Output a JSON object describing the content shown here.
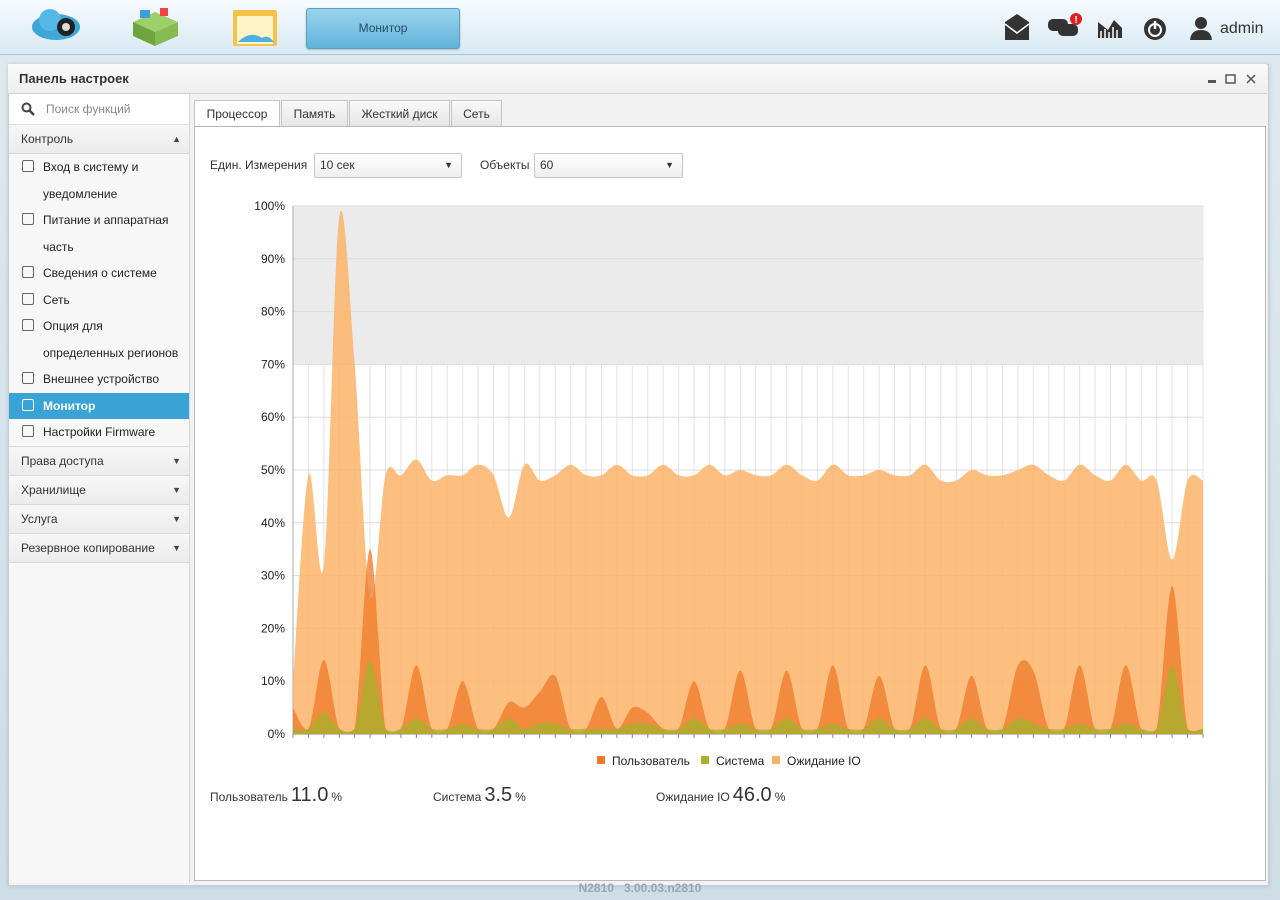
{
  "top_bar": {
    "active_tab": "Монитор",
    "notification_badge": "!",
    "user": "admin"
  },
  "window": {
    "title": "Панель настроек"
  },
  "sidebar": {
    "search_placeholder": "Поиск функций",
    "groups": [
      {
        "title": "Контроль",
        "expanded": true,
        "items": [
          {
            "label": "Вход в систему и уведомление"
          },
          {
            "label": "Питание и аппаратная часть"
          },
          {
            "label": "Сведения о системе"
          },
          {
            "label": "Сеть"
          },
          {
            "label": "Опция для определенных регионов"
          },
          {
            "label": "Внешнее устройство"
          },
          {
            "label": "Монитор",
            "active": true
          },
          {
            "label": "Настройки Firmware"
          }
        ]
      },
      {
        "title": "Права доступа"
      },
      {
        "title": "Хранилище"
      },
      {
        "title": "Услуга"
      },
      {
        "title": "Резервное копирование"
      }
    ]
  },
  "tabs": [
    {
      "label": "Процессор",
      "active": true
    },
    {
      "label": "Память"
    },
    {
      "label": "Жесткий диск"
    },
    {
      "label": "Сеть"
    }
  ],
  "controls": {
    "unit_label": "Един. Измерения",
    "unit_value": "10 сек",
    "objects_label": "Объекты",
    "objects_value": "60"
  },
  "chart_data": {
    "type": "area",
    "categories": [
      null,
      null,
      null,
      null,
      null,
      null,
      null,
      null,
      null,
      null,
      null,
      null,
      null,
      null,
      null,
      null,
      null,
      null,
      null,
      null,
      null,
      null,
      null,
      null,
      null,
      null,
      null,
      null,
      null,
      null,
      null,
      null,
      null,
      null,
      null,
      null,
      null,
      null,
      null,
      null,
      null,
      null,
      null,
      null,
      null,
      null,
      null,
      null,
      null,
      null,
      null,
      null,
      null,
      null,
      null,
      null,
      null,
      null,
      null,
      null
    ],
    "series": [
      {
        "name": "Ожидание IO",
        "color": "#fbb469",
        "values": [
          10,
          49,
          32,
          98,
          70,
          26,
          49,
          49,
          52,
          48,
          49,
          49,
          51,
          49,
          41,
          51,
          48,
          49,
          51,
          49,
          49,
          51,
          49,
          49,
          51,
          49,
          49,
          51,
          49,
          50,
          49,
          49,
          51,
          49,
          48,
          51,
          49,
          49,
          50,
          49,
          49,
          51,
          48,
          48,
          50,
          49,
          49,
          50,
          51,
          49,
          48,
          51,
          49,
          48,
          51,
          48,
          48,
          33,
          48,
          48
        ]
      },
      {
        "name": "Пользователь",
        "color": "#f07a2a",
        "values": [
          5,
          1,
          14,
          1,
          1,
          35,
          1,
          1,
          13,
          1,
          1,
          10,
          1,
          1,
          6,
          5,
          8,
          11,
          1,
          1,
          7,
          1,
          5,
          4,
          1,
          1,
          10,
          1,
          1,
          12,
          1,
          1,
          12,
          1,
          1,
          13,
          1,
          1,
          11,
          1,
          1,
          13,
          1,
          1,
          11,
          1,
          1,
          13,
          12,
          1,
          1,
          13,
          1,
          1,
          13,
          1,
          1,
          28,
          1,
          1
        ]
      },
      {
        "name": "Система",
        "color": "#a6b22b",
        "values": [
          1,
          1,
          4,
          1,
          1,
          14,
          1,
          1,
          3,
          1,
          1,
          2,
          1,
          1,
          3,
          1,
          2,
          2,
          1,
          1,
          1,
          1,
          2,
          2,
          1,
          1,
          3,
          1,
          1,
          2,
          1,
          1,
          3,
          1,
          1,
          2,
          1,
          1,
          3,
          1,
          1,
          3,
          1,
          1,
          3,
          1,
          1,
          3,
          2,
          1,
          1,
          2,
          1,
          1,
          2,
          1,
          1,
          13,
          1,
          1
        ]
      }
    ],
    "legend_order": [
      "Пользователь",
      "Система",
      "Ожидание IO"
    ],
    "ylim": [
      0,
      100
    ],
    "yticks": [
      {
        "value": 0,
        "label": "0%"
      },
      {
        "value": 10,
        "label": "10%"
      },
      {
        "value": 20,
        "label": "20%"
      },
      {
        "value": 30,
        "label": "30%"
      },
      {
        "value": 40,
        "label": "40%"
      },
      {
        "value": 50,
        "label": "50%"
      },
      {
        "value": 60,
        "label": "60%"
      },
      {
        "value": 70,
        "label": "70%"
      },
      {
        "value": 80,
        "label": "80%"
      },
      {
        "value": 90,
        "label": "90%"
      },
      {
        "value": 100,
        "label": "100%"
      }
    ],
    "shaded_band": {
      "from": 70,
      "to": 100,
      "color": "#ebebeb"
    },
    "grid": true,
    "legend": "bottom"
  },
  "summary": [
    {
      "label": "Пользователь",
      "value": "11.0",
      "unit": "%"
    },
    {
      "label": "Система",
      "value": "3.5",
      "unit": "%"
    },
    {
      "label": "Ожидание IO",
      "value": "46.0",
      "unit": "%"
    }
  ],
  "footer": {
    "model": "N2810",
    "version": "3.00.03.n2810"
  }
}
